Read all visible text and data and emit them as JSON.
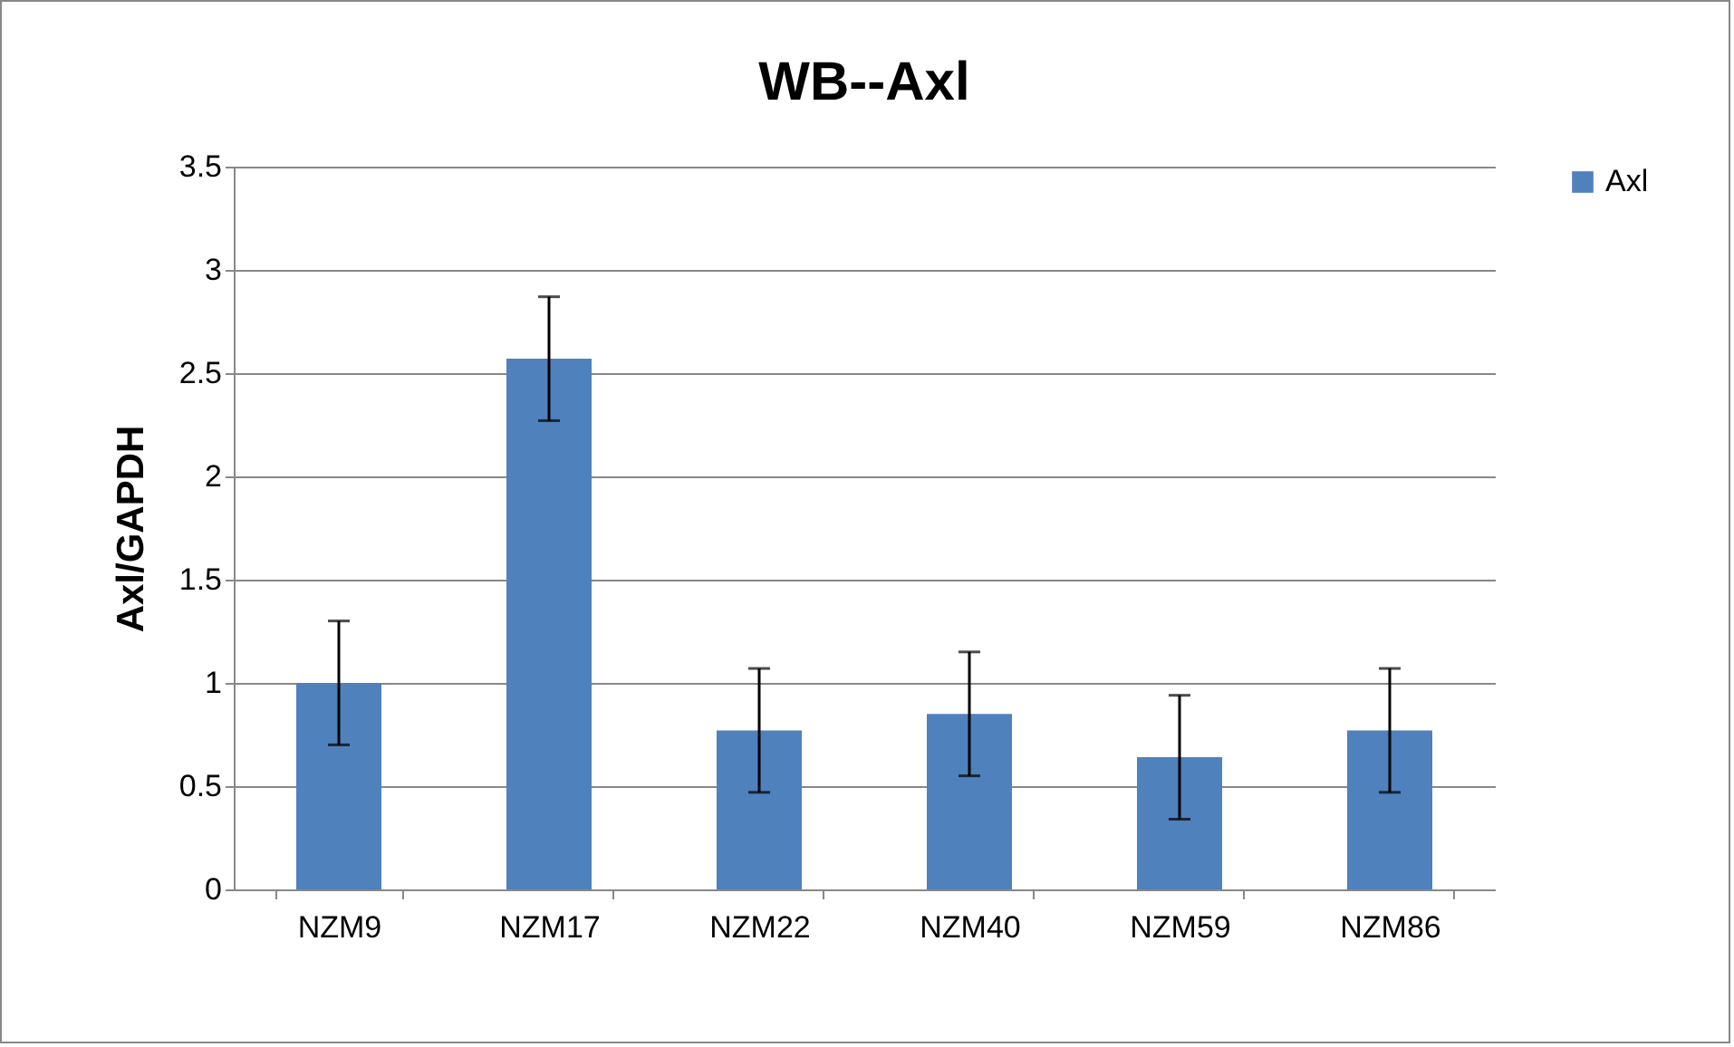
{
  "chart_data": {
    "type": "bar",
    "title": "WB--Axl",
    "ylabel": "Axl/GAPDH",
    "categories": [
      "NZM9",
      "NZM17",
      "NZM22",
      "NZM40",
      "NZM59",
      "NZM86"
    ],
    "series": [
      {
        "name": "Axl",
        "color": "#4f81bd",
        "values": [
          1.0,
          2.57,
          0.77,
          0.85,
          0.64,
          0.77
        ],
        "errors": [
          0.3,
          0.3,
          0.3,
          0.3,
          0.3,
          0.3
        ]
      }
    ],
    "ylim": [
      0,
      3.5
    ],
    "yticks": [
      0,
      0.5,
      1,
      1.5,
      2,
      2.5,
      3,
      3.5
    ],
    "grid": "y",
    "legend": "right"
  }
}
